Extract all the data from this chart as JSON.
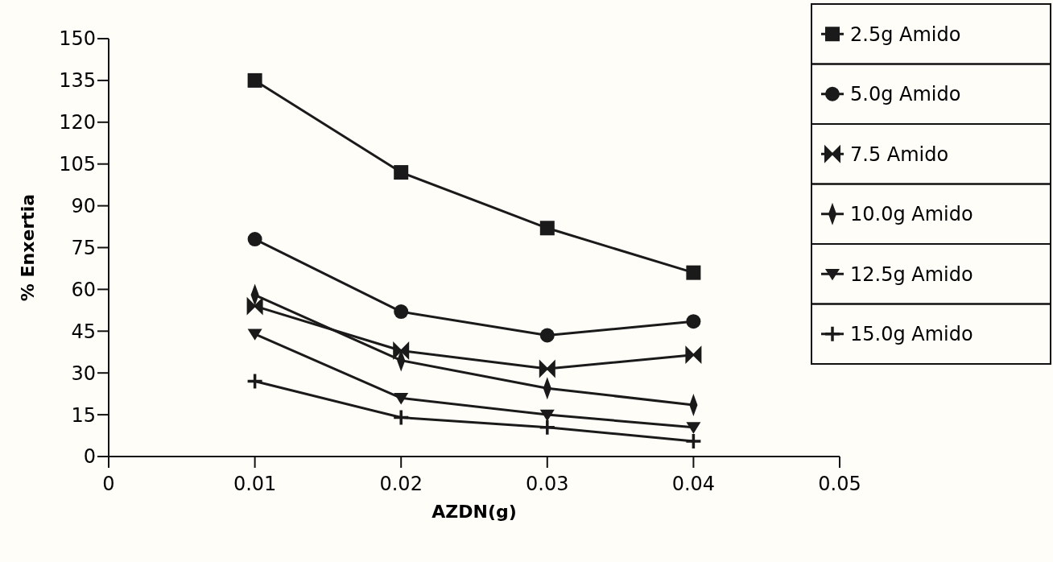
{
  "chart_data": {
    "type": "line",
    "xlabel": "AZDN(g)",
    "ylabel": "% Enxertia",
    "x": [
      0.01,
      0.02,
      0.03,
      0.04
    ],
    "xlim": [
      0,
      0.05
    ],
    "xticks": [
      0,
      0.01,
      0.02,
      0.03,
      0.04,
      0.05
    ],
    "ylim": [
      0,
      150
    ],
    "yticks": [
      0,
      15,
      30,
      45,
      60,
      75,
      90,
      105,
      120,
      135,
      150
    ],
    "grid": false,
    "legend": "top right",
    "series": [
      {
        "name": "2.5g Amido",
        "color": "#1a1a1a",
        "marker": "square",
        "values": [
          135,
          102,
          82,
          66
        ]
      },
      {
        "name": "5.0g Amido",
        "color": "#1a1a1a",
        "marker": "circle",
        "values": [
          78,
          52,
          43.5,
          48.5
        ]
      },
      {
        "name": "7.5 Amido",
        "color": "#1a1a1a",
        "marker": "star",
        "values": [
          54,
          38,
          31.5,
          36.5
        ]
      },
      {
        "name": "10.0g Amido",
        "color": "#1a1a1a",
        "marker": "diamond",
        "values": [
          58,
          34.5,
          24.5,
          18.5
        ]
      },
      {
        "name": "12.5g Amido",
        "color": "#1a1a1a",
        "marker": "triangle",
        "values": [
          44,
          21,
          15,
          10.5
        ]
      },
      {
        "name": "15.0g Amido",
        "color": "#1a1a1a",
        "marker": "cross",
        "values": [
          27,
          14,
          10.5,
          5.5
        ]
      }
    ]
  }
}
